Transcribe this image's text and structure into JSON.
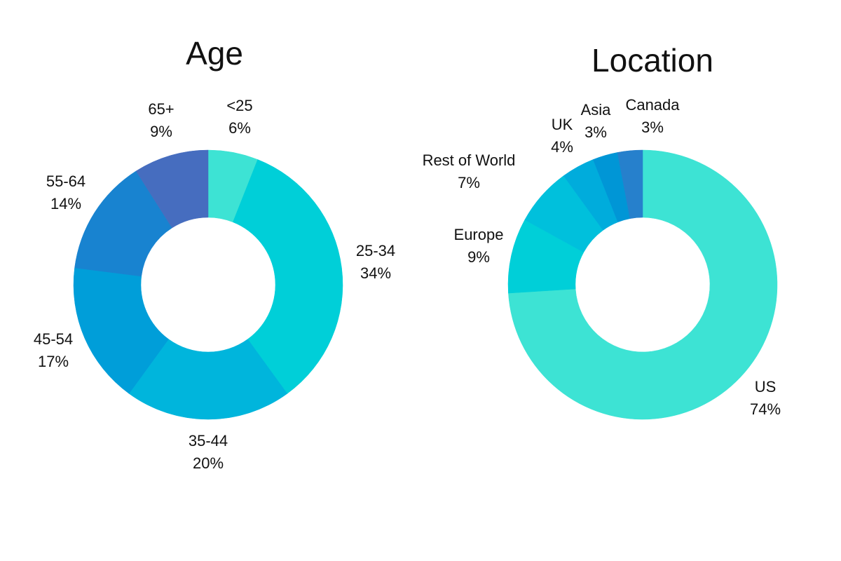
{
  "chart_data": [
    {
      "type": "donut",
      "title": "Age",
      "categories": [
        "<25",
        "25-34",
        "35-44",
        "45-54",
        "55-64",
        "65+"
      ],
      "values": [
        6,
        34,
        20,
        17,
        14,
        9
      ],
      "value_labels": [
        "6%",
        "34%",
        "20%",
        "17%",
        "14%",
        "9%"
      ],
      "colors": [
        "#3de3d4",
        "#00cfd8",
        "#00b5dc",
        "#009ed9",
        "#1883d0",
        "#466dbf"
      ]
    },
    {
      "type": "donut",
      "title": "Location",
      "categories": [
        "US",
        "Europe",
        "Rest of World",
        "UK",
        "Asia",
        "Canada"
      ],
      "values": [
        74,
        9,
        7,
        4,
        3,
        3
      ],
      "value_labels": [
        "74%",
        "9%",
        "7%",
        "4%",
        "3%",
        "3%"
      ],
      "colors": [
        "#3de3d4",
        "#00cfd8",
        "#00c0dc",
        "#00acdc",
        "#0096d6",
        "#2680cc"
      ]
    }
  ]
}
